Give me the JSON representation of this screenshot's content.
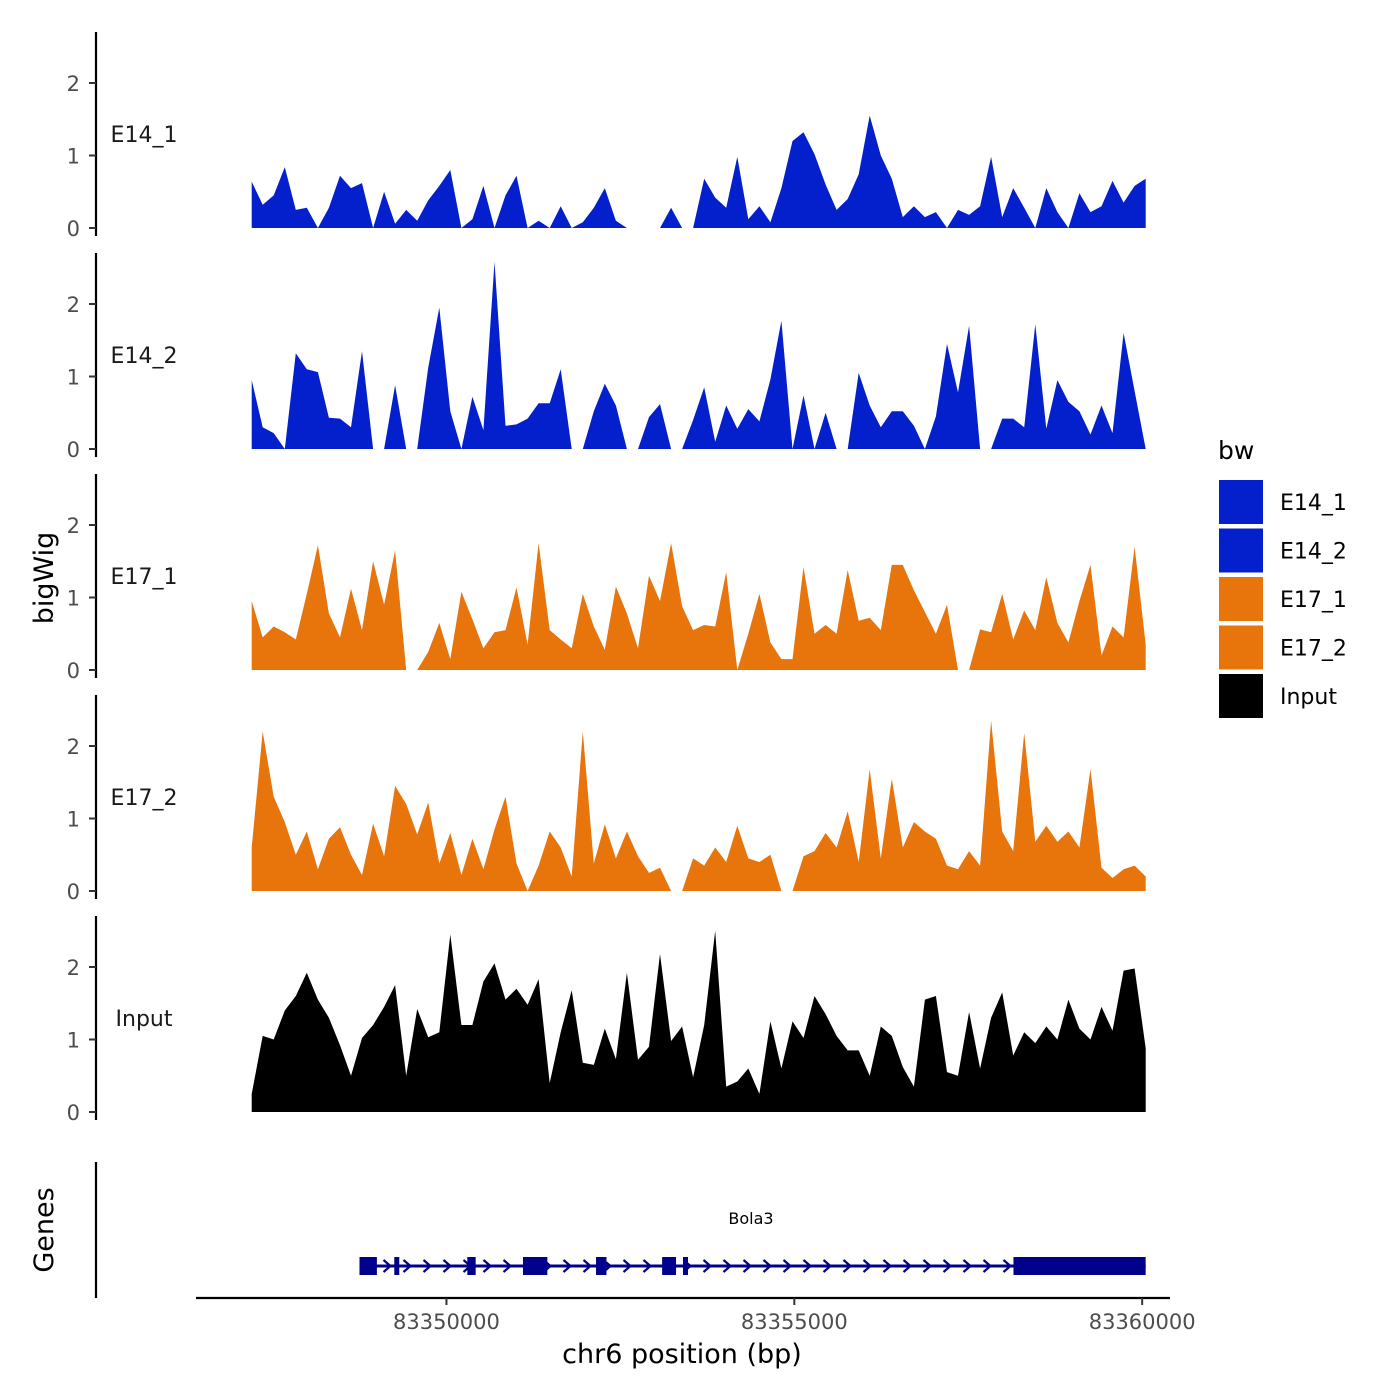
{
  "chart_data": {
    "type": "area",
    "ylabel": "bigWig",
    "xlabel": "chr6 position (bp)",
    "xlim": [
      83346400,
      83360400
    ],
    "data_xrange": [
      83347200,
      83360050
    ],
    "xticks": [
      83350000,
      83355000,
      83360000
    ],
    "xtick_labels": [
      "83350000",
      "83355000",
      "83360000"
    ],
    "ylim": [
      0,
      2.7
    ],
    "yticks": [
      0,
      1,
      2
    ],
    "ytick_labels": [
      "0",
      "1",
      "2"
    ],
    "legend": {
      "title": "bw",
      "position": "right",
      "entries": [
        {
          "label": "E14_1",
          "color": "#0420CC"
        },
        {
          "label": "E14_2",
          "color": "#0420CC"
        },
        {
          "label": "E17_1",
          "color": "#E8740C"
        },
        {
          "label": "E17_2",
          "color": "#E8740C"
        },
        {
          "label": "Input",
          "color": "#000000"
        }
      ]
    },
    "series": [
      {
        "name": "E14_1",
        "color": "#0420CC",
        "values": [
          0.64,
          0.32,
          0.45,
          0.84,
          0.25,
          0.28,
          0,
          0.28,
          0.72,
          0.55,
          0.62,
          0,
          0.5,
          0.06,
          0.25,
          0.1,
          0.38,
          0.58,
          0.8,
          0,
          0.12,
          0.58,
          0,
          0.45,
          0.72,
          0,
          0.1,
          0,
          0.3,
          0,
          0.08,
          0.28,
          0.55,
          0.1,
          0,
          0,
          0,
          0,
          0.28,
          0,
          0,
          0.68,
          0.42,
          0.28,
          0.98,
          0.12,
          0.3,
          0.08,
          0.55,
          1.2,
          1.32,
          1.02,
          0.6,
          0.25,
          0.4,
          0.74,
          1.55,
          1,
          0.68,
          0.15,
          0.3,
          0.15,
          0.22,
          0,
          0.25,
          0.18,
          0.3,
          0.98,
          0.15,
          0.55,
          0.28,
          0,
          0.55,
          0.22,
          0,
          0.48,
          0.22,
          0.3,
          0.65,
          0.35,
          0.58,
          0.68
        ]
      },
      {
        "name": "E14_2",
        "color": "#0420CC",
        "values": [
          0.95,
          0.3,
          0.22,
          0,
          1.32,
          1.1,
          1.06,
          0.43,
          0.42,
          0.3,
          1.35,
          0,
          0,
          0.88,
          0,
          0,
          1.12,
          1.95,
          0.52,
          0,
          0.72,
          0.26,
          2.58,
          0.32,
          0.34,
          0.42,
          0.63,
          0.63,
          1.1,
          0,
          0,
          0.52,
          0.9,
          0.6,
          0,
          0,
          0.44,
          0.62,
          0,
          0,
          0.4,
          0.85,
          0.1,
          0.6,
          0.28,
          0.55,
          0.38,
          0.96,
          1.77,
          0,
          0.74,
          0,
          0.5,
          0,
          0,
          1.05,
          0.6,
          0.3,
          0.52,
          0.52,
          0.32,
          0,
          0.45,
          1.45,
          0.78,
          1.7,
          0,
          0,
          0.42,
          0.42,
          0.3,
          1.72,
          0.28,
          0.95,
          0.65,
          0.52,
          0.2,
          0.6,
          0.22,
          1.6,
          0.8,
          0
        ]
      },
      {
        "name": "E17_1",
        "color": "#E8740C",
        "values": [
          0.95,
          0.45,
          0.6,
          0.52,
          0.42,
          1.05,
          1.72,
          0.78,
          0.45,
          1.12,
          0.55,
          1.5,
          0.9,
          1.65,
          0,
          0,
          0.25,
          0.65,
          0.15,
          1.08,
          0.7,
          0.3,
          0.52,
          0.55,
          1.14,
          0.35,
          1.75,
          0.55,
          0.42,
          0.3,
          1.05,
          0.6,
          0.28,
          1.15,
          0.78,
          0.3,
          1.3,
          0.95,
          1.75,
          0.88,
          0.55,
          0.62,
          0.6,
          1.35,
          0,
          0.5,
          1.05,
          0.38,
          0.15,
          0.15,
          1.42,
          0.5,
          0.62,
          0.5,
          1.38,
          0.68,
          0.72,
          0.55,
          1.45,
          1.45,
          1.1,
          0.8,
          0.5,
          0.9,
          0,
          0,
          0.56,
          0.52,
          1.05,
          0.42,
          0.82,
          0.55,
          1.28,
          0.65,
          0.38,
          0.95,
          1.45,
          0.2,
          0.6,
          0.45,
          1.7,
          0.35
        ]
      },
      {
        "name": "E17_2",
        "color": "#E8740C",
        "values": [
          0.6,
          2.2,
          1.3,
          0.95,
          0.5,
          0.82,
          0.3,
          0.72,
          0.88,
          0.5,
          0.22,
          0.93,
          0.48,
          1.45,
          1.2,
          0.78,
          1.22,
          0.38,
          0.8,
          0.22,
          0.72,
          0.3,
          0.85,
          1.3,
          0.38,
          0,
          0.35,
          0.82,
          0.6,
          0.2,
          2.2,
          0.38,
          0.92,
          0.45,
          0.82,
          0.48,
          0.25,
          0.32,
          0,
          0,
          0.45,
          0.35,
          0.6,
          0.4,
          0.9,
          0.45,
          0.4,
          0.5,
          0,
          0,
          0.48,
          0.55,
          0.8,
          0.6,
          1.1,
          0.4,
          1.68,
          0.45,
          1.55,
          0.6,
          0.95,
          0.82,
          0.72,
          0.35,
          0.3,
          0.55,
          0.35,
          2.35,
          0.82,
          0.55,
          2.18,
          0.68,
          0.9,
          0.68,
          0.82,
          0.6,
          1.68,
          0.32,
          0.18,
          0.3,
          0.35,
          0.2
        ]
      },
      {
        "name": "Input",
        "color": "#000000",
        "values": [
          0.25,
          1.05,
          1.0,
          1.4,
          1.6,
          1.92,
          1.55,
          1.3,
          0.92,
          0.5,
          1.02,
          1.2,
          1.45,
          1.75,
          0.5,
          1.42,
          1.03,
          1.1,
          2.45,
          1.2,
          1.2,
          1.8,
          2.05,
          1.55,
          1.7,
          1.48,
          1.83,
          0.4,
          1.1,
          1.68,
          0.68,
          0.65,
          1.15,
          0.73,
          1.92,
          0.72,
          0.9,
          2.18,
          0.98,
          1.18,
          0.48,
          1.2,
          2.5,
          0.35,
          0.42,
          0.6,
          0.25,
          1.25,
          0.6,
          1.25,
          1.02,
          1.6,
          1.35,
          1.05,
          0.85,
          0.85,
          0.5,
          1.18,
          1.05,
          0.62,
          0.35,
          1.55,
          1.6,
          0.55,
          0.5,
          1.38,
          0.6,
          1.3,
          1.65,
          0.78,
          1.1,
          0.95,
          1.18,
          1.0,
          1.55,
          1.15,
          1.0,
          1.45,
          1.12,
          1.95,
          1.98,
          0.88
        ]
      }
    ],
    "gene_track": {
      "label": "Genes",
      "gene_name": "Bola3",
      "color": "#00008B",
      "start": 83348750,
      "end": 83360050,
      "strand": "+",
      "exons": [
        [
          83348750,
          83349000
        ],
        [
          83349250,
          83349320
        ],
        [
          83350300,
          83350420
        ],
        [
          83351100,
          83351450
        ],
        [
          83352150,
          83352300
        ],
        [
          83353100,
          83353300
        ],
        [
          83353400,
          83353450
        ],
        [
          83358150,
          83360050
        ]
      ]
    }
  }
}
